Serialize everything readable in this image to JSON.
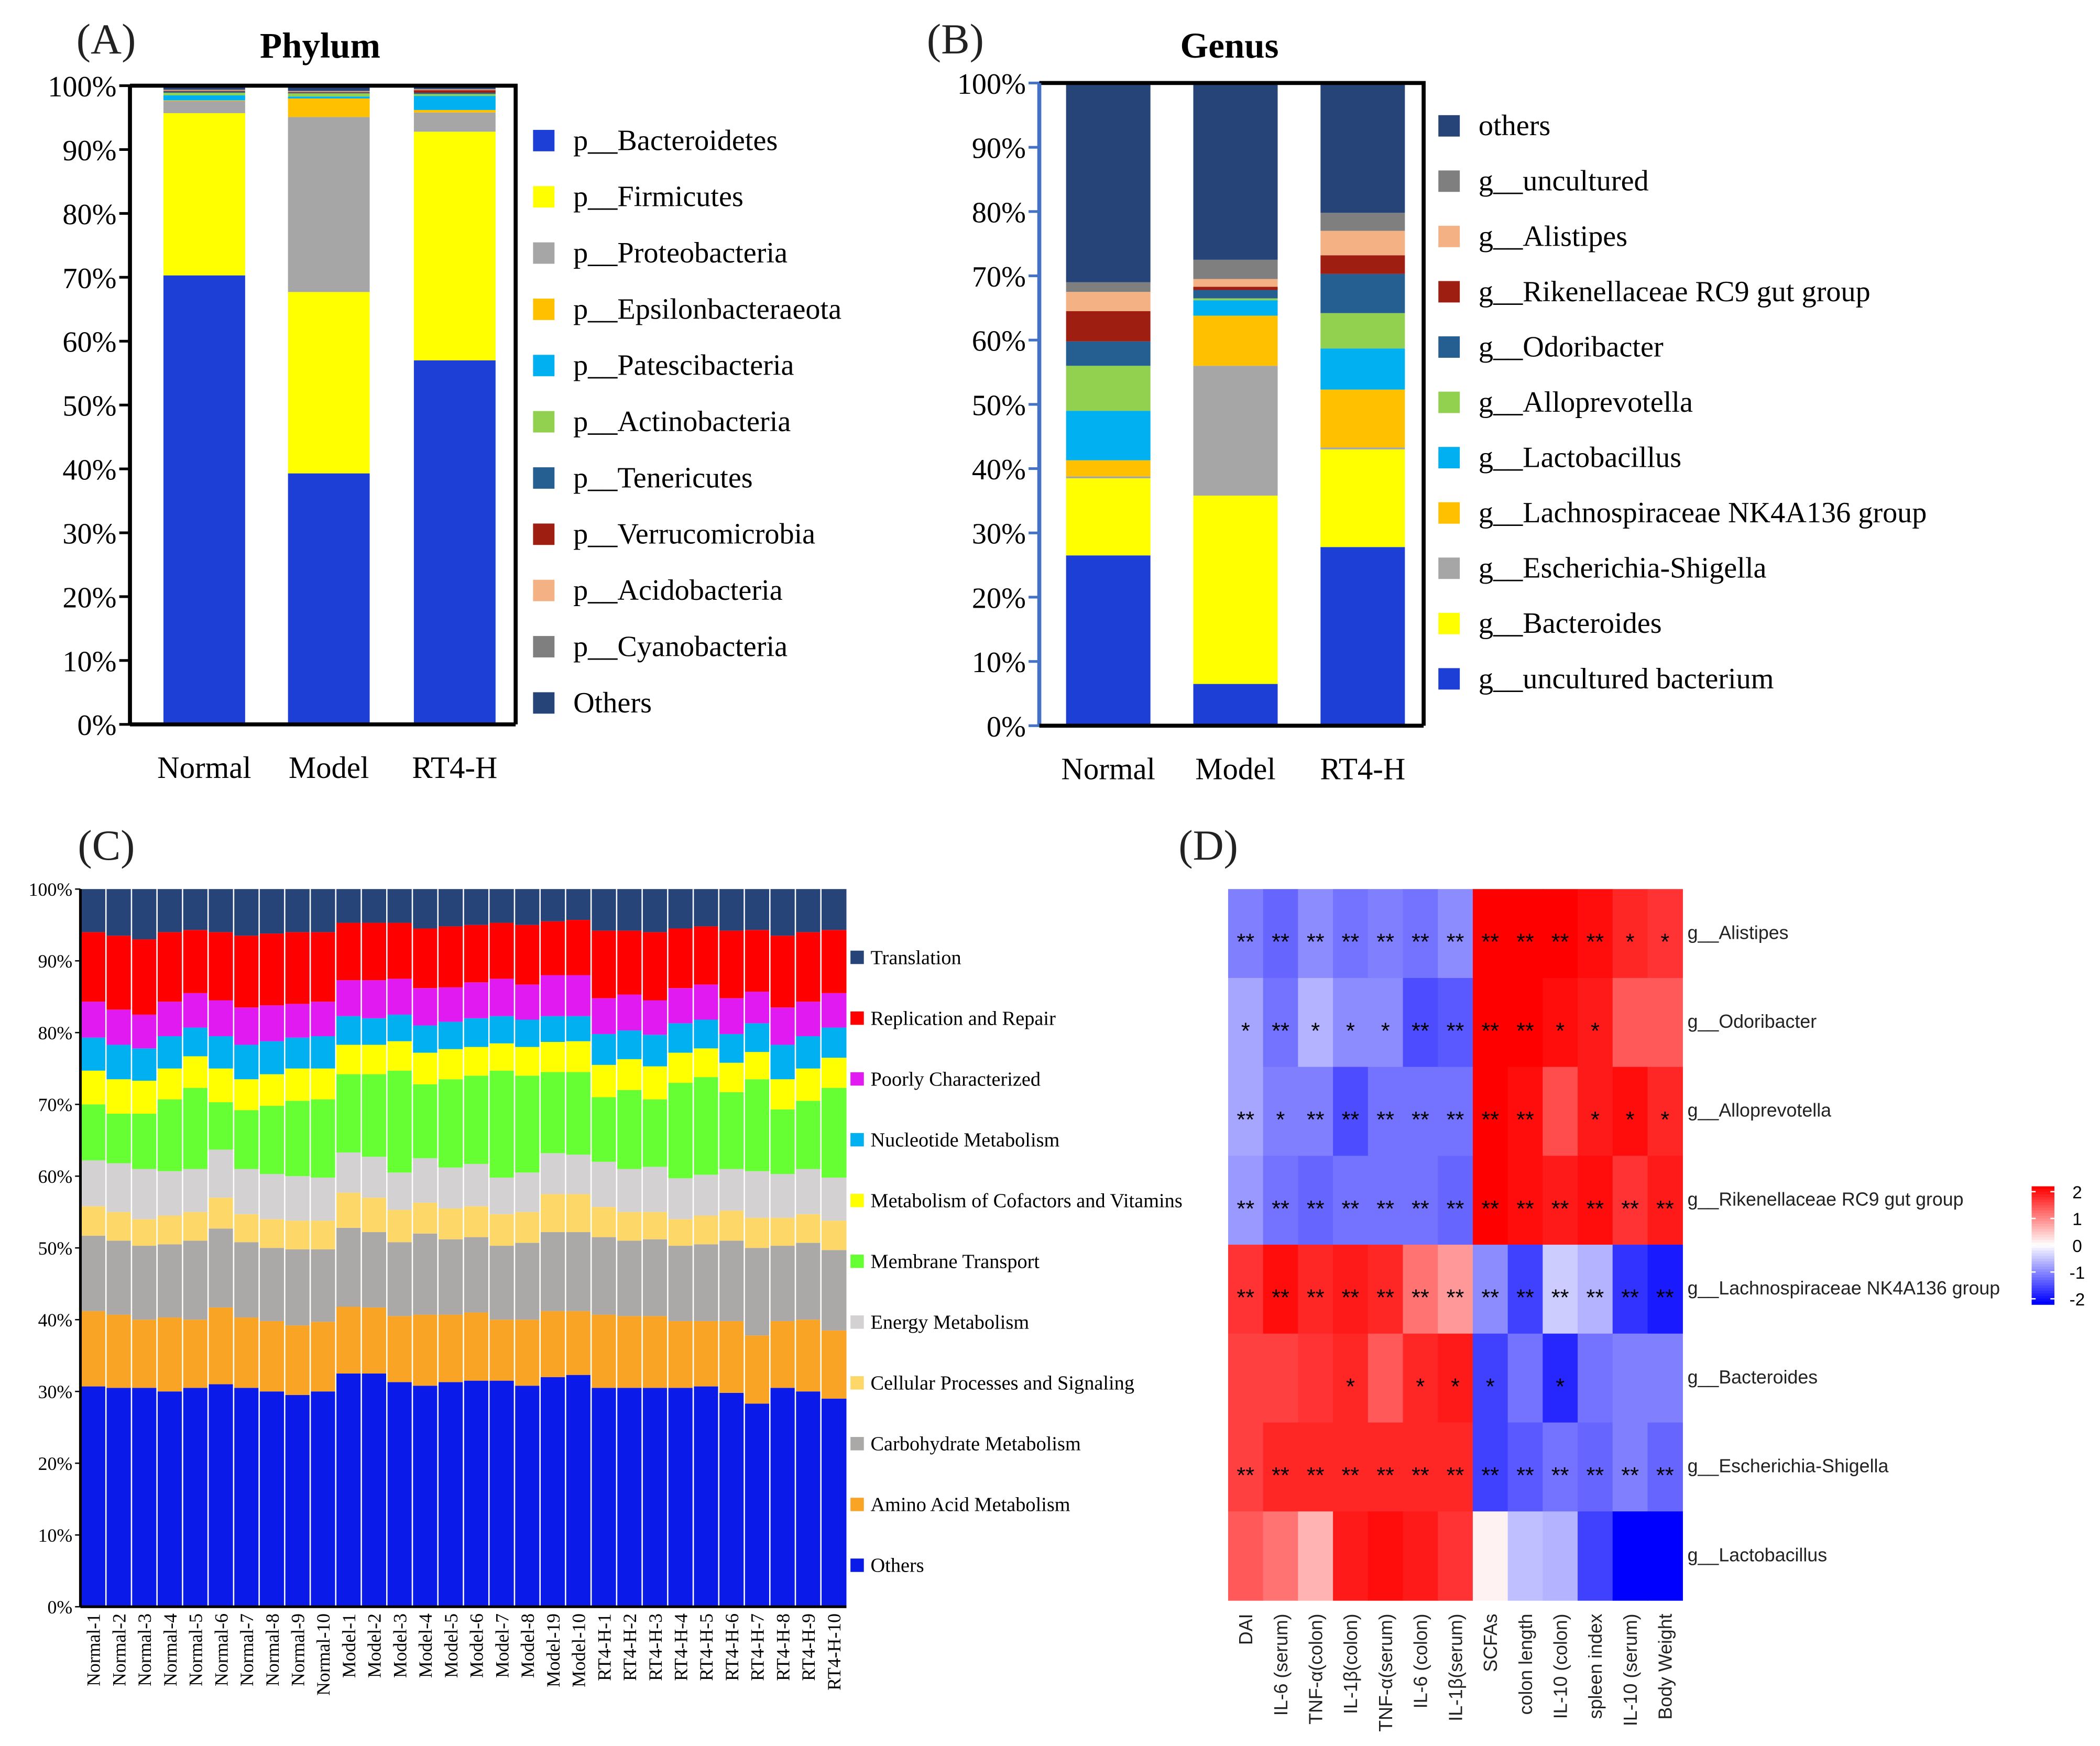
{
  "chart_data": [
    {
      "panel": "(A)",
      "type": "bar",
      "stacked": true,
      "title": "Phylum",
      "categories": [
        "Normal",
        "Model",
        "RT4-H"
      ],
      "yticks": [
        "0%",
        "10%",
        "20%",
        "30%",
        "40%",
        "50%",
        "60%",
        "70%",
        "80%",
        "90%",
        "100%"
      ],
      "ylim": [
        0,
        100
      ],
      "legend_position": "right",
      "series": [
        {
          "name": "p__Bacteroidetes",
          "color": "#1d3fd6",
          "values": [
            70.3,
            39.3,
            57.0
          ]
        },
        {
          "name": "p__Firmicutes",
          "color": "#ffff00",
          "values": [
            25.4,
            28.4,
            35.8
          ]
        },
        {
          "name": "p__Proteobacteria",
          "color": "#a6a6a6",
          "values": [
            1.9,
            27.4,
            3.0
          ]
        },
        {
          "name": "p__Epsilonbacteraeota",
          "color": "#ffc000",
          "values": [
            0.1,
            2.9,
            0.4
          ]
        },
        {
          "name": "p__Patescibacteria",
          "color": "#00b0f0",
          "values": [
            0.8,
            0.3,
            2.2
          ]
        },
        {
          "name": "p__Actinobacteria",
          "color": "#92d050",
          "values": [
            0.4,
            0.5,
            0.3
          ]
        },
        {
          "name": "p__Tenericutes",
          "color": "#255e91",
          "values": [
            0.2,
            0.1,
            0.2
          ]
        },
        {
          "name": "p__Verrucomicrobia",
          "color": "#9e1f12",
          "values": [
            0.1,
            0.1,
            0.4
          ]
        },
        {
          "name": "p__Acidobacteria",
          "color": "#f4b183",
          "values": [
            0.1,
            0.1,
            0.1
          ]
        },
        {
          "name": "p__Cyanobacteria",
          "color": "#7f7f7f",
          "values": [
            0.1,
            0.1,
            0.1
          ]
        },
        {
          "name": "Others",
          "color": "#264478",
          "values": [
            0.6,
            0.8,
            0.5
          ]
        }
      ]
    },
    {
      "panel": "(B)",
      "type": "bar",
      "stacked": true,
      "title": "Genus",
      "categories": [
        "Normal",
        "Model",
        "RT4-H"
      ],
      "yticks": [
        "0%",
        "10%",
        "20%",
        "30%",
        "40%",
        "50%",
        "60%",
        "70%",
        "80%",
        "90%",
        "100%"
      ],
      "ylim": [
        0,
        100
      ],
      "legend_position": "right",
      "series": [
        {
          "name": "g__uncultured bacterium",
          "color": "#1d3fd6",
          "values": [
            26.5,
            6.5,
            27.8
          ]
        },
        {
          "name": "g__Bacteroides",
          "color": "#ffff00",
          "values": [
            12.0,
            29.3,
            15.2
          ]
        },
        {
          "name": "g__Escherichia-Shigella",
          "color": "#a6a6a6",
          "values": [
            0.3,
            20.2,
            0.3
          ]
        },
        {
          "name": "g__Lachnospiraceae NK4A136 group",
          "color": "#ffc000",
          "values": [
            2.5,
            7.8,
            9.0
          ]
        },
        {
          "name": "g__Lactobacillus",
          "color": "#00b0f0",
          "values": [
            7.7,
            2.4,
            6.4
          ]
        },
        {
          "name": "g__Alloprevotella",
          "color": "#92d050",
          "values": [
            7.0,
            0.3,
            5.5
          ]
        },
        {
          "name": "g__Odoribacter",
          "color": "#255e91",
          "values": [
            3.8,
            1.3,
            6.1
          ]
        },
        {
          "name": "g__Rikenellaceae RC9 gut group",
          "color": "#9e1f12",
          "values": [
            4.7,
            0.5,
            2.9
          ]
        },
        {
          "name": "g__Alistipes",
          "color": "#f4b183",
          "values": [
            3.0,
            1.2,
            3.8
          ]
        },
        {
          "name": "g__uncultured",
          "color": "#7f7f7f",
          "values": [
            1.5,
            3.0,
            2.8
          ]
        },
        {
          "name": "others",
          "color": "#264478",
          "values": [
            31.0,
            27.5,
            20.2
          ]
        }
      ]
    },
    {
      "panel": "(C)",
      "type": "bar",
      "stacked": true,
      "title": "",
      "yticks": [
        "0%",
        "10%",
        "20%",
        "30%",
        "40%",
        "50%",
        "60%",
        "70%",
        "80%",
        "90%",
        "100%"
      ],
      "ylim": [
        0,
        100
      ],
      "legend_position": "right",
      "series_names": [
        "Others",
        "Amino Acid Metabolism",
        "Carbohydrate Metabolism",
        "Cellular Processes and Signaling",
        "Energy Metabolism",
        "Membrane Transport",
        "Metabolism of Cofactors and Vitamins",
        "Nucleotide Metabolism",
        "Poorly Characterized",
        "Replication and Repair",
        "Translation"
      ],
      "series_colors": [
        "#0a1ae8",
        "#f9a425",
        "#aba8a8",
        "#fdd868",
        "#d3d1d1",
        "#66ff33",
        "#ffff00",
        "#00b0f0",
        "#e01af0",
        "#ff0000",
        "#264478"
      ],
      "samples": [
        {
          "name": "Normal-1",
          "cumulative_percent": [
            30.7,
            41.2,
            51.7,
            55.8,
            62.2,
            70.0,
            74.7,
            79.3,
            84.3,
            94.0,
            100
          ]
        },
        {
          "name": "Normal-2",
          "cumulative_percent": [
            30.5,
            40.7,
            51.0,
            55.0,
            61.8,
            68.7,
            73.5,
            78.3,
            83.2,
            93.5,
            100
          ]
        },
        {
          "name": "Normal-3",
          "cumulative_percent": [
            30.5,
            40.0,
            50.3,
            54.0,
            61.0,
            68.7,
            73.3,
            77.8,
            82.5,
            93.0,
            100
          ]
        },
        {
          "name": "Normal-4",
          "cumulative_percent": [
            30.0,
            40.3,
            50.5,
            54.5,
            60.7,
            70.7,
            75.0,
            79.5,
            84.3,
            94.0,
            100
          ]
        },
        {
          "name": "Normal-5",
          "cumulative_percent": [
            30.5,
            40.0,
            51.0,
            55.0,
            61.0,
            72.3,
            76.7,
            80.7,
            85.5,
            94.3,
            100
          ]
        },
        {
          "name": "Normal-6",
          "cumulative_percent": [
            31.0,
            41.7,
            52.7,
            57.0,
            63.7,
            70.3,
            75.0,
            79.5,
            84.5,
            94.0,
            100
          ]
        },
        {
          "name": "Normal-7",
          "cumulative_percent": [
            30.5,
            40.3,
            50.8,
            54.7,
            61.0,
            69.2,
            73.5,
            78.3,
            83.5,
            93.5,
            100
          ]
        },
        {
          "name": "Normal-8",
          "cumulative_percent": [
            30.0,
            39.8,
            50.0,
            54.0,
            60.3,
            69.8,
            74.2,
            78.8,
            83.8,
            93.8,
            100
          ]
        },
        {
          "name": "Normal-9",
          "cumulative_percent": [
            29.5,
            39.2,
            49.8,
            53.8,
            60.0,
            70.5,
            75.0,
            79.3,
            84.0,
            94.0,
            100
          ]
        },
        {
          "name": "Normal-10",
          "cumulative_percent": [
            30.0,
            39.7,
            49.8,
            53.8,
            59.8,
            70.7,
            75.0,
            79.5,
            84.3,
            94.0,
            100
          ]
        },
        {
          "name": "Model-1",
          "cumulative_percent": [
            32.5,
            41.8,
            52.8,
            57.7,
            63.3,
            74.2,
            78.3,
            82.3,
            87.3,
            95.3,
            100
          ]
        },
        {
          "name": "Model-2",
          "cumulative_percent": [
            32.5,
            41.7,
            52.2,
            57.0,
            62.7,
            74.2,
            78.3,
            82.0,
            87.3,
            95.3,
            100
          ]
        },
        {
          "name": "Model-3",
          "cumulative_percent": [
            31.3,
            40.5,
            50.8,
            55.3,
            60.5,
            74.7,
            78.8,
            82.5,
            87.5,
            95.3,
            100
          ]
        },
        {
          "name": "Model-4",
          "cumulative_percent": [
            30.8,
            40.7,
            52.0,
            56.3,
            62.5,
            72.8,
            77.2,
            81.0,
            86.2,
            94.5,
            100
          ]
        },
        {
          "name": "Model-5",
          "cumulative_percent": [
            31.3,
            40.7,
            51.2,
            55.5,
            61.2,
            73.5,
            77.7,
            81.5,
            86.3,
            94.8,
            100
          ]
        },
        {
          "name": "Model-6",
          "cumulative_percent": [
            31.5,
            41.0,
            51.5,
            55.8,
            61.7,
            74.0,
            78.0,
            82.0,
            87.0,
            95.0,
            100
          ]
        },
        {
          "name": "Model-7",
          "cumulative_percent": [
            31.5,
            40.0,
            50.3,
            54.7,
            59.8,
            74.7,
            78.5,
            82.3,
            87.5,
            95.3,
            100
          ]
        },
        {
          "name": "Model-8",
          "cumulative_percent": [
            30.8,
            40.0,
            50.7,
            55.0,
            60.5,
            74.0,
            78.0,
            81.8,
            86.7,
            95.0,
            100
          ]
        },
        {
          "name": "Model-19",
          "cumulative_percent": [
            32.0,
            41.2,
            52.2,
            57.5,
            63.2,
            74.5,
            78.7,
            82.3,
            88.0,
            95.5,
            100
          ]
        },
        {
          "name": "Model-10",
          "cumulative_percent": [
            32.3,
            41.2,
            52.2,
            57.5,
            63.0,
            74.5,
            78.8,
            82.3,
            88.0,
            95.7,
            100
          ]
        },
        {
          "name": "RT4-H-1",
          "cumulative_percent": [
            30.5,
            40.7,
            51.5,
            55.7,
            62.0,
            71.0,
            75.5,
            79.8,
            84.8,
            94.2,
            100
          ]
        },
        {
          "name": "RT4-H-2",
          "cumulative_percent": [
            30.5,
            40.5,
            51.0,
            55.0,
            61.0,
            72.0,
            76.3,
            80.3,
            85.3,
            94.2,
            100
          ]
        },
        {
          "name": "RT4-H-3",
          "cumulative_percent": [
            30.5,
            40.5,
            51.2,
            55.0,
            61.3,
            70.7,
            75.3,
            79.7,
            84.5,
            94.0,
            100
          ]
        },
        {
          "name": "RT4-H-4",
          "cumulative_percent": [
            30.5,
            39.8,
            50.3,
            54.0,
            59.7,
            73.0,
            77.2,
            81.3,
            86.2,
            94.5,
            100
          ]
        },
        {
          "name": "RT4-H-5",
          "cumulative_percent": [
            30.7,
            39.8,
            50.5,
            54.5,
            60.2,
            73.8,
            77.8,
            81.8,
            86.7,
            94.8,
            100
          ]
        },
        {
          "name": "RT4-H-6",
          "cumulative_percent": [
            29.8,
            39.8,
            51.0,
            55.2,
            61.0,
            71.7,
            75.8,
            79.8,
            84.8,
            94.2,
            100
          ]
        },
        {
          "name": "RT4-H-7",
          "cumulative_percent": [
            28.3,
            37.8,
            50.0,
            54.2,
            60.7,
            73.5,
            77.3,
            81.3,
            85.7,
            94.3,
            100
          ]
        },
        {
          "name": "RT4-H-8",
          "cumulative_percent": [
            30.5,
            39.8,
            50.3,
            54.2,
            60.3,
            69.3,
            73.5,
            78.3,
            83.5,
            93.5,
            100
          ]
        },
        {
          "name": "RT4-H-9",
          "cumulative_percent": [
            30.0,
            40.0,
            50.7,
            54.7,
            61.0,
            70.5,
            75.0,
            79.5,
            84.3,
            94.0,
            100
          ]
        },
        {
          "name": "RT4-H-10",
          "cumulative_percent": [
            29.0,
            38.5,
            49.7,
            53.8,
            59.8,
            72.3,
            76.5,
            80.7,
            85.5,
            94.3,
            100
          ]
        }
      ]
    },
    {
      "panel": "(D)",
      "type": "heatmap",
      "columns": [
        "DAI",
        "IL-6 (serum)",
        "TNF-α(colon)",
        "IL-1β(colon)",
        "TNF-α(serum)",
        "IL-6 (colon)",
        "IL-1β(serum)",
        "SCFAs",
        "colon length",
        "IL-10 (colon)",
        "spleen index",
        "IL-10 (serum)",
        "Body Weight"
      ],
      "rows": [
        {
          "name": "g__Alistipes",
          "values": [
            -1.0,
            -1.2,
            -0.9,
            -1.1,
            -1.0,
            -1.1,
            -0.9,
            2.0,
            2.1,
            2.0,
            1.9,
            1.7,
            1.6
          ],
          "stars": [
            "**",
            "**",
            "**",
            "**",
            "**",
            "**",
            "**",
            "**",
            "**",
            "**",
            "**",
            "*",
            "*"
          ]
        },
        {
          "name": "g__Odoribacter",
          "values": [
            -0.7,
            -1.1,
            -0.6,
            -0.9,
            -0.9,
            -1.4,
            -1.3,
            2.0,
            2.1,
            1.9,
            1.8,
            1.3,
            1.3
          ],
          "stars": [
            "*",
            "**",
            "*",
            "*",
            "*",
            "**",
            "**",
            "**",
            "**",
            "*",
            "*",
            "",
            ""
          ]
        },
        {
          "name": "g__Alloprevotella",
          "values": [
            -0.7,
            -1.0,
            -1.0,
            -1.4,
            -1.1,
            -1.1,
            -1.1,
            2.0,
            1.9,
            1.4,
            1.8,
            1.9,
            1.7
          ],
          "stars": [
            "**",
            "*",
            "**",
            "**",
            "**",
            "**",
            "**",
            "**",
            "**",
            "",
            "*",
            "*",
            "*"
          ]
        },
        {
          "name": "g__Rikenellaceae RC9 gut group",
          "values": [
            -0.8,
            -1.1,
            -1.2,
            -1.1,
            -1.1,
            -1.1,
            -1.2,
            2.0,
            1.9,
            1.8,
            1.9,
            1.6,
            1.8
          ],
          "stars": [
            "**",
            "**",
            "**",
            "**",
            "**",
            "**",
            "**",
            "**",
            "**",
            "**",
            "**",
            "**",
            "**"
          ]
        },
        {
          "name": "g__Lachnospiraceae NK4A136 group",
          "values": [
            1.6,
            1.9,
            1.7,
            1.8,
            1.7,
            1.1,
            0.8,
            -0.9,
            -1.5,
            -0.4,
            -0.6,
            -1.6,
            -1.8
          ],
          "stars": [
            "**",
            "**",
            "**",
            "**",
            "**",
            "**",
            "**",
            "**",
            "**",
            "**",
            "**",
            "**",
            "**"
          ]
        },
        {
          "name": "g__Bacteroides",
          "values": [
            1.5,
            1.5,
            1.6,
            1.7,
            1.3,
            1.7,
            1.8,
            -1.5,
            -1.1,
            -1.7,
            -1.1,
            -1.0,
            -1.0
          ],
          "stars": [
            "",
            "",
            "",
            "*",
            "",
            "*",
            "*",
            "*",
            "",
            "*",
            "",
            "",
            ""
          ]
        },
        {
          "name": "g__Escherichia-Shigella",
          "values": [
            1.5,
            1.7,
            1.7,
            1.7,
            1.7,
            1.7,
            1.7,
            -1.5,
            -1.3,
            -1.1,
            -1.2,
            -1.0,
            -1.2
          ],
          "stars": [
            "**",
            "**",
            "**",
            "**",
            "**",
            "**",
            "**",
            "**",
            "**",
            "**",
            "**",
            "**",
            "**"
          ]
        },
        {
          "name": "g__Lactobacillus",
          "values": [
            1.3,
            1.1,
            0.6,
            1.8,
            1.9,
            1.8,
            1.6,
            0.1,
            -0.5,
            -0.6,
            -1.5,
            -2.2,
            -2.1
          ],
          "stars": [
            "",
            "",
            "",
            "",
            "",
            "",
            "",
            "",
            "",
            "",
            "",
            "",
            ""
          ]
        }
      ],
      "color_scale": {
        "min": -2,
        "max": 2,
        "low_color": "#0000ff",
        "mid_color": "#ffffff",
        "high_color": "#ff0000",
        "tick_labels": [
          "2",
          "1",
          "0",
          "-1",
          "-2"
        ]
      }
    }
  ]
}
